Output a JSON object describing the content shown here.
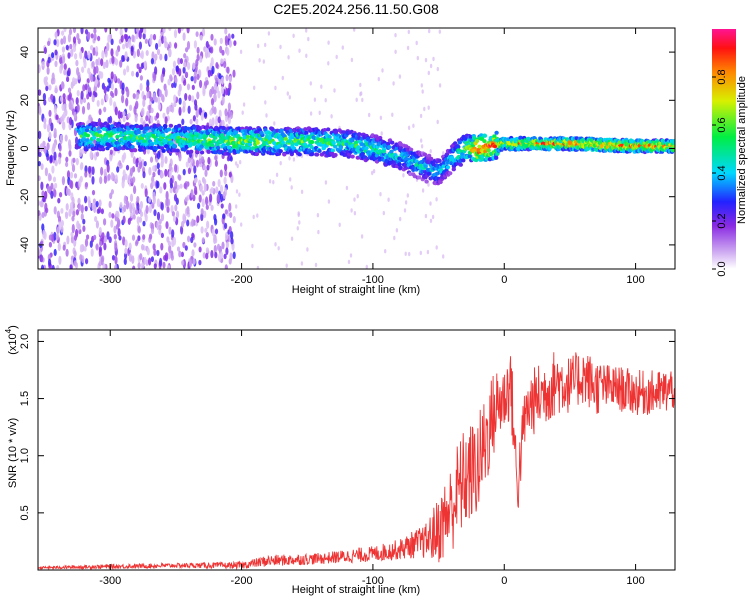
{
  "title": "C2E5.2024.256.11.50.G08",
  "chart_data": [
    {
      "type": "heatmap",
      "xlabel": "Height of straight line (km)",
      "ylabel": "Frequency (Hz)",
      "xlim": [
        -355,
        130
      ],
      "ylim": [
        -50,
        50
      ],
      "xticks": [
        -300,
        -200,
        -100,
        0,
        100
      ],
      "yticks": [
        -40,
        -20,
        0,
        20,
        40
      ],
      "colorbar": {
        "label": "Normalized spectral amplitude",
        "range": [
          0,
          1
        ],
        "ticks": [
          "0.0",
          "0.2",
          "0.4",
          "0.6",
          "0.8"
        ],
        "tick_values": [
          0.0,
          0.2,
          0.4,
          0.6,
          0.8
        ]
      },
      "ridge": {
        "x": [
          -325,
          -300,
          -250,
          -200,
          -150,
          -120,
          -100,
          -80,
          -60,
          -50,
          -40,
          -30,
          -20,
          -10,
          0,
          20,
          50,
          100,
          130
        ],
        "freq": [
          5,
          5,
          4,
          3,
          3,
          2,
          0,
          -3,
          -8,
          -10,
          -4,
          0,
          0,
          1,
          2,
          2,
          2,
          1,
          1
        ],
        "amplitude": [
          0.5,
          0.55,
          0.55,
          0.6,
          0.55,
          0.5,
          0.5,
          0.45,
          0.4,
          0.4,
          0.45,
          0.55,
          0.9,
          0.85,
          0.7,
          0.75,
          0.8,
          0.8,
          0.75
        ]
      },
      "noise_region": [
        -355,
        -205
      ]
    },
    {
      "type": "line",
      "xlabel": "Height of straight line (km)",
      "ylabel": "SNR (10 * v/v)",
      "yscale_label": "(x10",
      "yscale_exp": "4",
      "yscale_close": ")",
      "xlim": [
        -355,
        130
      ],
      "ylim": [
        0,
        2.1
      ],
      "xticks": [
        -300,
        -200,
        -100,
        0,
        100
      ],
      "yticks": [
        0.5,
        1.0,
        1.5,
        2.0
      ],
      "ytick_labels": [
        "0.5",
        "1.0",
        "1.5",
        "2.0"
      ],
      "color": "#ee3333",
      "series": [
        {
          "x": [
            -355,
            -300,
            -250,
            -200,
            -180,
            -160,
            -140,
            -120,
            -100,
            -80,
            -70,
            -60,
            -50,
            -45,
            -40,
            -35,
            -30,
            -25,
            -20,
            -15,
            -10,
            -5,
            0,
            5,
            10,
            15,
            20,
            30,
            40,
            50,
            60,
            70,
            80,
            90,
            100,
            110,
            120,
            130
          ],
          "values": [
            0.02,
            0.03,
            0.04,
            0.04,
            0.08,
            0.09,
            0.1,
            0.12,
            0.14,
            0.18,
            0.22,
            0.25,
            0.35,
            0.45,
            0.55,
            0.7,
            0.8,
            0.85,
            0.9,
            1.1,
            1.3,
            1.45,
            1.5,
            1.65,
            0.7,
            1.3,
            1.45,
            1.55,
            1.65,
            1.62,
            1.7,
            1.6,
            1.6,
            1.58,
            1.55,
            1.55,
            1.55,
            1.6
          ],
          "spread": [
            0.01,
            0.02,
            0.02,
            0.03,
            0.05,
            0.05,
            0.05,
            0.06,
            0.07,
            0.09,
            0.12,
            0.15,
            0.3,
            0.35,
            0.4,
            0.45,
            0.45,
            0.45,
            0.45,
            0.45,
            0.4,
            0.35,
            0.3,
            0.35,
            0.3,
            0.25,
            0.3,
            0.3,
            0.3,
            0.25,
            0.25,
            0.25,
            0.2,
            0.2,
            0.2,
            0.2,
            0.2,
            0.2
          ]
        }
      ]
    }
  ]
}
